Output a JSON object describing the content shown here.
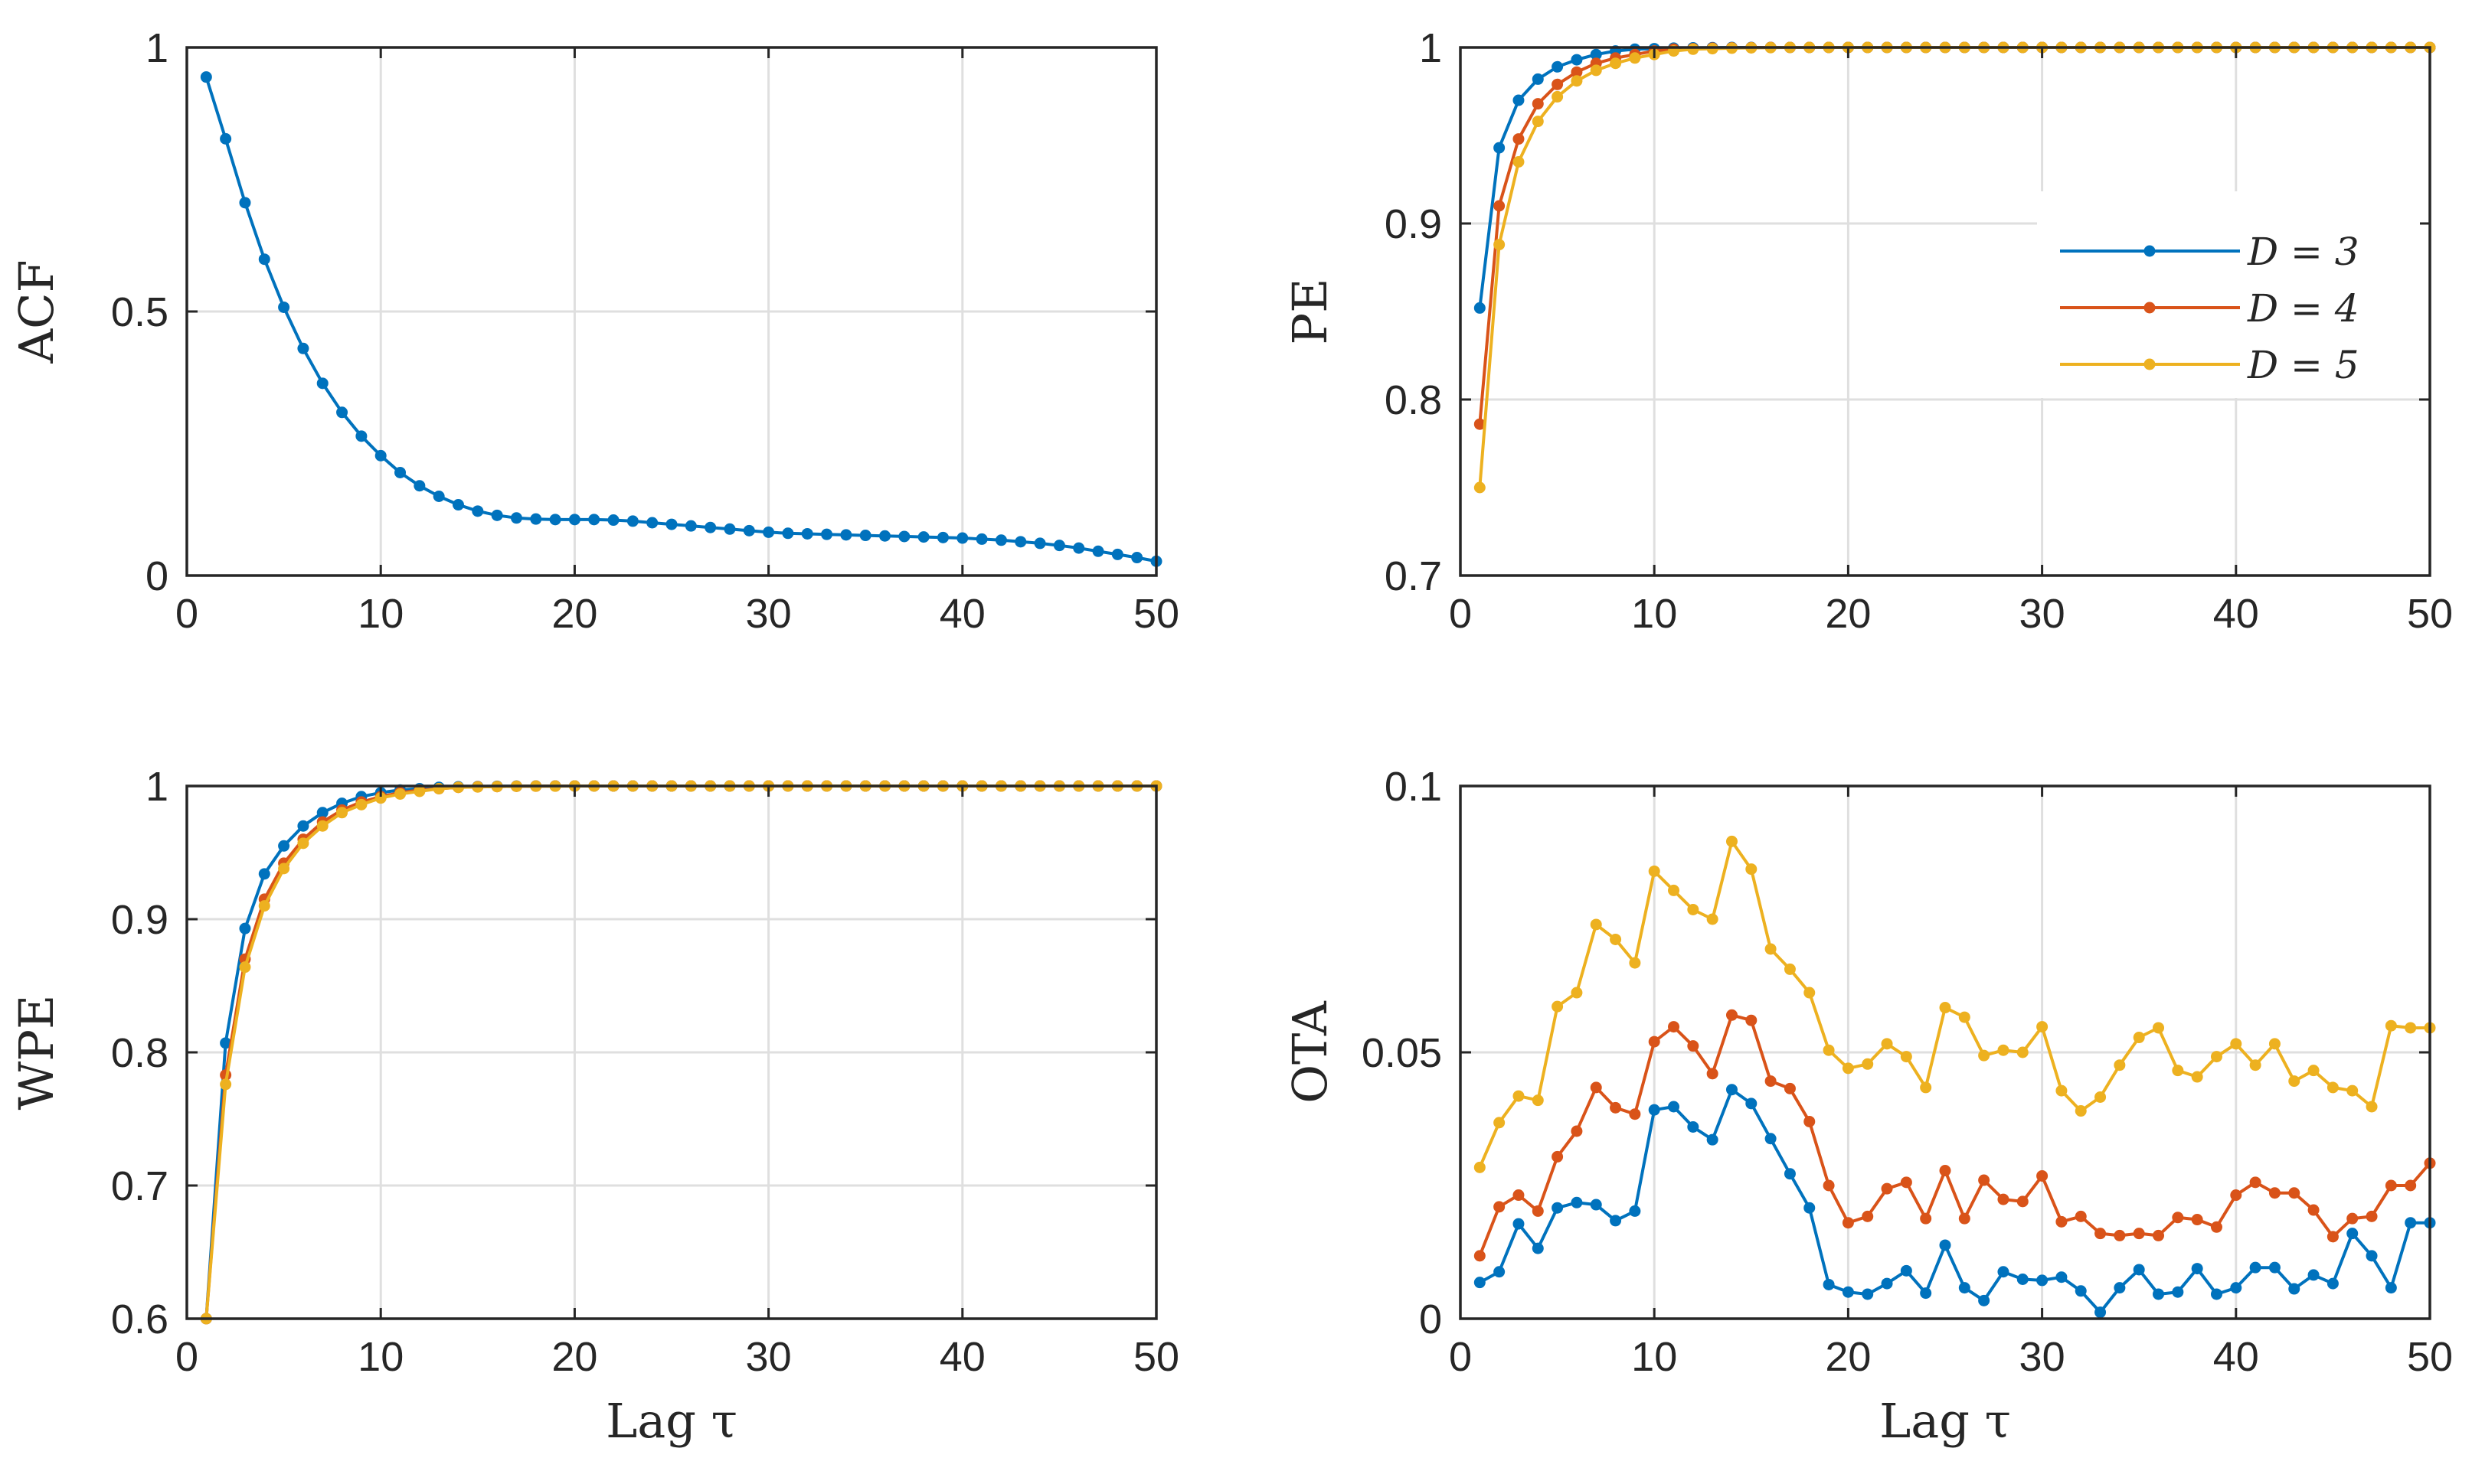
{
  "colors": {
    "series_blue": "#0072BD",
    "series_red": "#D95319",
    "series_yellow": "#EDB120",
    "axes": "#262626",
    "grid": "#dfdfdf"
  },
  "chart_data": [
    {
      "id": "acf",
      "type": "line",
      "ylabel": "ACF",
      "xlabel": "",
      "xlim": [
        0,
        50
      ],
      "ylim": [
        0,
        1
      ],
      "xticks": [
        0,
        10,
        20,
        30,
        40,
        50
      ],
      "xtick_labels": [
        "0",
        "10",
        "20",
        "30",
        "40",
        "50"
      ],
      "yticks": [
        0,
        0.5,
        1
      ],
      "ytick_labels": [
        "0",
        "0.5",
        "1"
      ],
      "grid": true,
      "x": [
        1,
        2,
        3,
        4,
        5,
        6,
        7,
        8,
        9,
        10,
        11,
        12,
        13,
        14,
        15,
        16,
        17,
        18,
        19,
        20,
        21,
        22,
        23,
        24,
        25,
        26,
        27,
        28,
        29,
        30,
        31,
        32,
        33,
        34,
        35,
        36,
        37,
        38,
        39,
        40,
        41,
        42,
        43,
        44,
        45,
        46,
        47,
        48,
        49,
        50
      ],
      "series": [
        {
          "name": "ACF",
          "color": "#0072BD",
          "values": [
            0.944,
            0.827,
            0.706,
            0.599,
            0.508,
            0.43,
            0.364,
            0.309,
            0.264,
            0.227,
            0.195,
            0.17,
            0.15,
            0.134,
            0.122,
            0.114,
            0.109,
            0.107,
            0.106,
            0.106,
            0.106,
            0.105,
            0.103,
            0.1,
            0.097,
            0.094,
            0.091,
            0.088,
            0.085,
            0.082,
            0.08,
            0.079,
            0.078,
            0.077,
            0.076,
            0.075,
            0.074,
            0.073,
            0.072,
            0.071,
            0.069,
            0.067,
            0.064,
            0.061,
            0.057,
            0.052,
            0.046,
            0.04,
            0.034,
            0.027
          ]
        }
      ]
    },
    {
      "id": "pe",
      "type": "line",
      "ylabel": "PE",
      "xlabel": "",
      "xlim": [
        0,
        50
      ],
      "ylim": [
        0.7,
        1
      ],
      "xticks": [
        0,
        10,
        20,
        30,
        40,
        50
      ],
      "xtick_labels": [
        "0",
        "10",
        "20",
        "30",
        "40",
        "50"
      ],
      "yticks": [
        0.7,
        0.8,
        0.9,
        1
      ],
      "ytick_labels": [
        "0.7",
        "0.8",
        "0.9",
        "1"
      ],
      "grid": true,
      "legend_position": "right",
      "x": [
        1,
        2,
        3,
        4,
        5,
        6,
        7,
        8,
        9,
        10,
        11,
        12,
        13,
        14,
        15,
        16,
        17,
        18,
        19,
        20,
        21,
        22,
        23,
        24,
        25,
        26,
        27,
        28,
        29,
        30,
        31,
        32,
        33,
        34,
        35,
        36,
        37,
        38,
        39,
        40,
        41,
        42,
        43,
        44,
        45,
        46,
        47,
        48,
        49,
        50
      ],
      "series": [
        {
          "name": "D = 3",
          "color": "#0072BD",
          "values": [
            0.852,
            0.943,
            0.97,
            0.982,
            0.989,
            0.993,
            0.996,
            0.998,
            0.999,
            0.9993,
            0.9996,
            0.9998,
            0.9999,
            1,
            1,
            1,
            1,
            1,
            1,
            1,
            1,
            1,
            1,
            1,
            1,
            1,
            1,
            1,
            1,
            1,
            1,
            1,
            1,
            1,
            1,
            1,
            1,
            1,
            1,
            1,
            1,
            1,
            1,
            1,
            1,
            1,
            1,
            1,
            1,
            1
          ]
        },
        {
          "name": "D = 4",
          "color": "#D95319",
          "values": [
            0.786,
            0.91,
            0.948,
            0.968,
            0.979,
            0.986,
            0.991,
            0.994,
            0.996,
            0.998,
            0.999,
            0.9993,
            0.9996,
            0.9998,
            0.9999,
            1,
            1,
            1,
            1,
            1,
            1,
            1,
            1,
            1,
            1,
            1,
            1,
            1,
            1,
            1,
            1,
            1,
            1,
            1,
            1,
            1,
            1,
            1,
            1,
            1,
            1,
            1,
            1,
            1,
            1,
            1,
            1,
            1,
            1,
            1
          ]
        },
        {
          "name": "D = 5",
          "color": "#EDB120",
          "values": [
            0.75,
            0.888,
            0.935,
            0.958,
            0.972,
            0.981,
            0.987,
            0.991,
            0.994,
            0.996,
            0.998,
            0.999,
            0.9993,
            0.9996,
            0.9998,
            0.9999,
            1,
            1,
            1,
            1,
            1,
            1,
            1,
            1,
            1,
            1,
            1,
            1,
            1,
            1,
            1,
            1,
            1,
            1,
            1,
            1,
            1,
            1,
            1,
            1,
            1,
            1,
            1,
            1,
            1,
            1,
            1,
            1,
            1,
            1
          ]
        }
      ]
    },
    {
      "id": "wpe",
      "type": "line",
      "ylabel": "WPE",
      "xlabel": "Lag τ",
      "xlim": [
        0,
        50
      ],
      "ylim": [
        0.6,
        1
      ],
      "xticks": [
        0,
        10,
        20,
        30,
        40,
        50
      ],
      "xtick_labels": [
        "0",
        "10",
        "20",
        "30",
        "40",
        "50"
      ],
      "yticks": [
        0.6,
        0.7,
        0.8,
        0.9,
        1
      ],
      "ytick_labels": [
        "0.6",
        "0.7",
        "0.8",
        "0.9",
        "1"
      ],
      "grid": true,
      "x": [
        1,
        2,
        3,
        4,
        5,
        6,
        7,
        8,
        9,
        10,
        11,
        12,
        13,
        14,
        15,
        16,
        17,
        18,
        19,
        20,
        21,
        22,
        23,
        24,
        25,
        26,
        27,
        28,
        29,
        30,
        31,
        32,
        33,
        34,
        35,
        36,
        37,
        38,
        39,
        40,
        41,
        42,
        43,
        44,
        45,
        46,
        47,
        48,
        49,
        50
      ],
      "series": [
        {
          "name": "D = 3",
          "color": "#0072BD",
          "values": [
            0.6,
            0.807,
            0.893,
            0.934,
            0.955,
            0.97,
            0.98,
            0.987,
            0.992,
            0.995,
            0.997,
            0.998,
            0.999,
            0.9994,
            0.9996,
            0.9998,
            0.9999,
            1,
            1,
            1,
            1,
            1,
            1,
            1,
            1,
            1,
            1,
            1,
            1,
            1,
            1,
            1,
            1,
            1,
            1,
            1,
            1,
            1,
            1,
            1,
            1,
            1,
            1,
            1,
            1,
            1,
            1,
            1,
            1,
            1
          ]
        },
        {
          "name": "D = 4",
          "color": "#D95319",
          "values": [
            0.598,
            0.783,
            0.87,
            0.915,
            0.942,
            0.96,
            0.973,
            0.982,
            0.988,
            0.992,
            0.995,
            0.997,
            0.998,
            0.999,
            0.9994,
            0.9996,
            0.9998,
            0.9999,
            1,
            1,
            1,
            1,
            1,
            1,
            1,
            1,
            1,
            1,
            1,
            1,
            1,
            1,
            1,
            1,
            1,
            1,
            1,
            1,
            1,
            1,
            1,
            1,
            1,
            1,
            1,
            1,
            1,
            1,
            1,
            1
          ]
        },
        {
          "name": "D = 5",
          "color": "#EDB120",
          "values": [
            0.596,
            0.776,
            0.864,
            0.91,
            0.938,
            0.957,
            0.97,
            0.98,
            0.986,
            0.991,
            0.994,
            0.996,
            0.998,
            0.999,
            0.9993,
            0.9996,
            0.9998,
            0.9999,
            0.9999,
            1,
            1,
            1,
            1,
            1,
            1,
            1,
            1,
            1,
            1,
            1,
            1,
            1,
            1,
            1,
            1,
            1,
            1,
            1,
            1,
            1,
            1,
            1,
            1,
            1,
            1,
            1,
            1,
            1,
            1,
            1
          ]
        }
      ]
    },
    {
      "id": "ota",
      "type": "line",
      "ylabel": "OTA",
      "xlabel": "Lag τ",
      "xlim": [
        0,
        50
      ],
      "ylim": [
        0,
        0.1
      ],
      "xticks": [
        0,
        10,
        20,
        30,
        40,
        50
      ],
      "xtick_labels": [
        "0",
        "10",
        "20",
        "30",
        "40",
        "50"
      ],
      "yticks": [
        0,
        0.05,
        0.1
      ],
      "ytick_labels": [
        "0",
        "0.05",
        "0.1"
      ],
      "grid": true,
      "x": [
        1,
        2,
        3,
        4,
        5,
        6,
        7,
        8,
        9,
        10,
        11,
        12,
        13,
        14,
        15,
        16,
        17,
        18,
        19,
        20,
        21,
        22,
        23,
        24,
        25,
        26,
        27,
        28,
        29,
        30,
        31,
        32,
        33,
        34,
        35,
        36,
        37,
        38,
        39,
        40,
        41,
        42,
        43,
        44,
        45,
        46,
        47,
        48,
        49,
        50
      ],
      "series": [
        {
          "name": "D = 3",
          "color": "#0072BD",
          "values": [
            0.0068,
            0.0088,
            0.0178,
            0.0132,
            0.0208,
            0.0218,
            0.0214,
            0.0184,
            0.0202,
            0.0392,
            0.0398,
            0.036,
            0.0336,
            0.043,
            0.0404,
            0.0338,
            0.0272,
            0.0208,
            0.0064,
            0.005,
            0.0046,
            0.0066,
            0.009,
            0.0048,
            0.0138,
            0.0058,
            0.0034,
            0.0088,
            0.0074,
            0.0072,
            0.0078,
            0.0052,
            0.0012,
            0.0058,
            0.0092,
            0.0046,
            0.005,
            0.0094,
            0.0046,
            0.0058,
            0.0096,
            0.0096,
            0.0056,
            0.0082,
            0.0066,
            0.016,
            0.0118,
            0.0058,
            0.018,
            0.018
          ]
        },
        {
          "name": "D = 4",
          "color": "#D95319",
          "values": [
            0.0118,
            0.021,
            0.0232,
            0.0202,
            0.0304,
            0.0352,
            0.0434,
            0.0396,
            0.0384,
            0.052,
            0.0548,
            0.0512,
            0.046,
            0.057,
            0.056,
            0.0446,
            0.0432,
            0.037,
            0.025,
            0.018,
            0.0192,
            0.0244,
            0.0256,
            0.0188,
            0.0278,
            0.0188,
            0.026,
            0.0224,
            0.022,
            0.0268,
            0.0182,
            0.0192,
            0.016,
            0.0156,
            0.016,
            0.0156,
            0.019,
            0.0186,
            0.0172,
            0.0232,
            0.0256,
            0.0236,
            0.0236,
            0.0204,
            0.0154,
            0.0188,
            0.0192,
            0.025,
            0.025,
            0.0292
          ]
        },
        {
          "name": "D = 5",
          "color": "#EDB120",
          "values": [
            0.0284,
            0.0368,
            0.0418,
            0.041,
            0.0586,
            0.0612,
            0.074,
            0.0712,
            0.0668,
            0.084,
            0.0804,
            0.0768,
            0.075,
            0.0896,
            0.0844,
            0.0694,
            0.0656,
            0.0612,
            0.0504,
            0.047,
            0.0478,
            0.0516,
            0.0492,
            0.0434,
            0.0584,
            0.0566,
            0.0494,
            0.0504,
            0.05,
            0.0548,
            0.0428,
            0.039,
            0.0416,
            0.0476,
            0.0528,
            0.0546,
            0.0466,
            0.0454,
            0.0492,
            0.0516,
            0.0476,
            0.0516,
            0.0446,
            0.0466,
            0.0434,
            0.0428,
            0.0398,
            0.055,
            0.0546,
            0.0546
          ]
        }
      ]
    }
  ]
}
